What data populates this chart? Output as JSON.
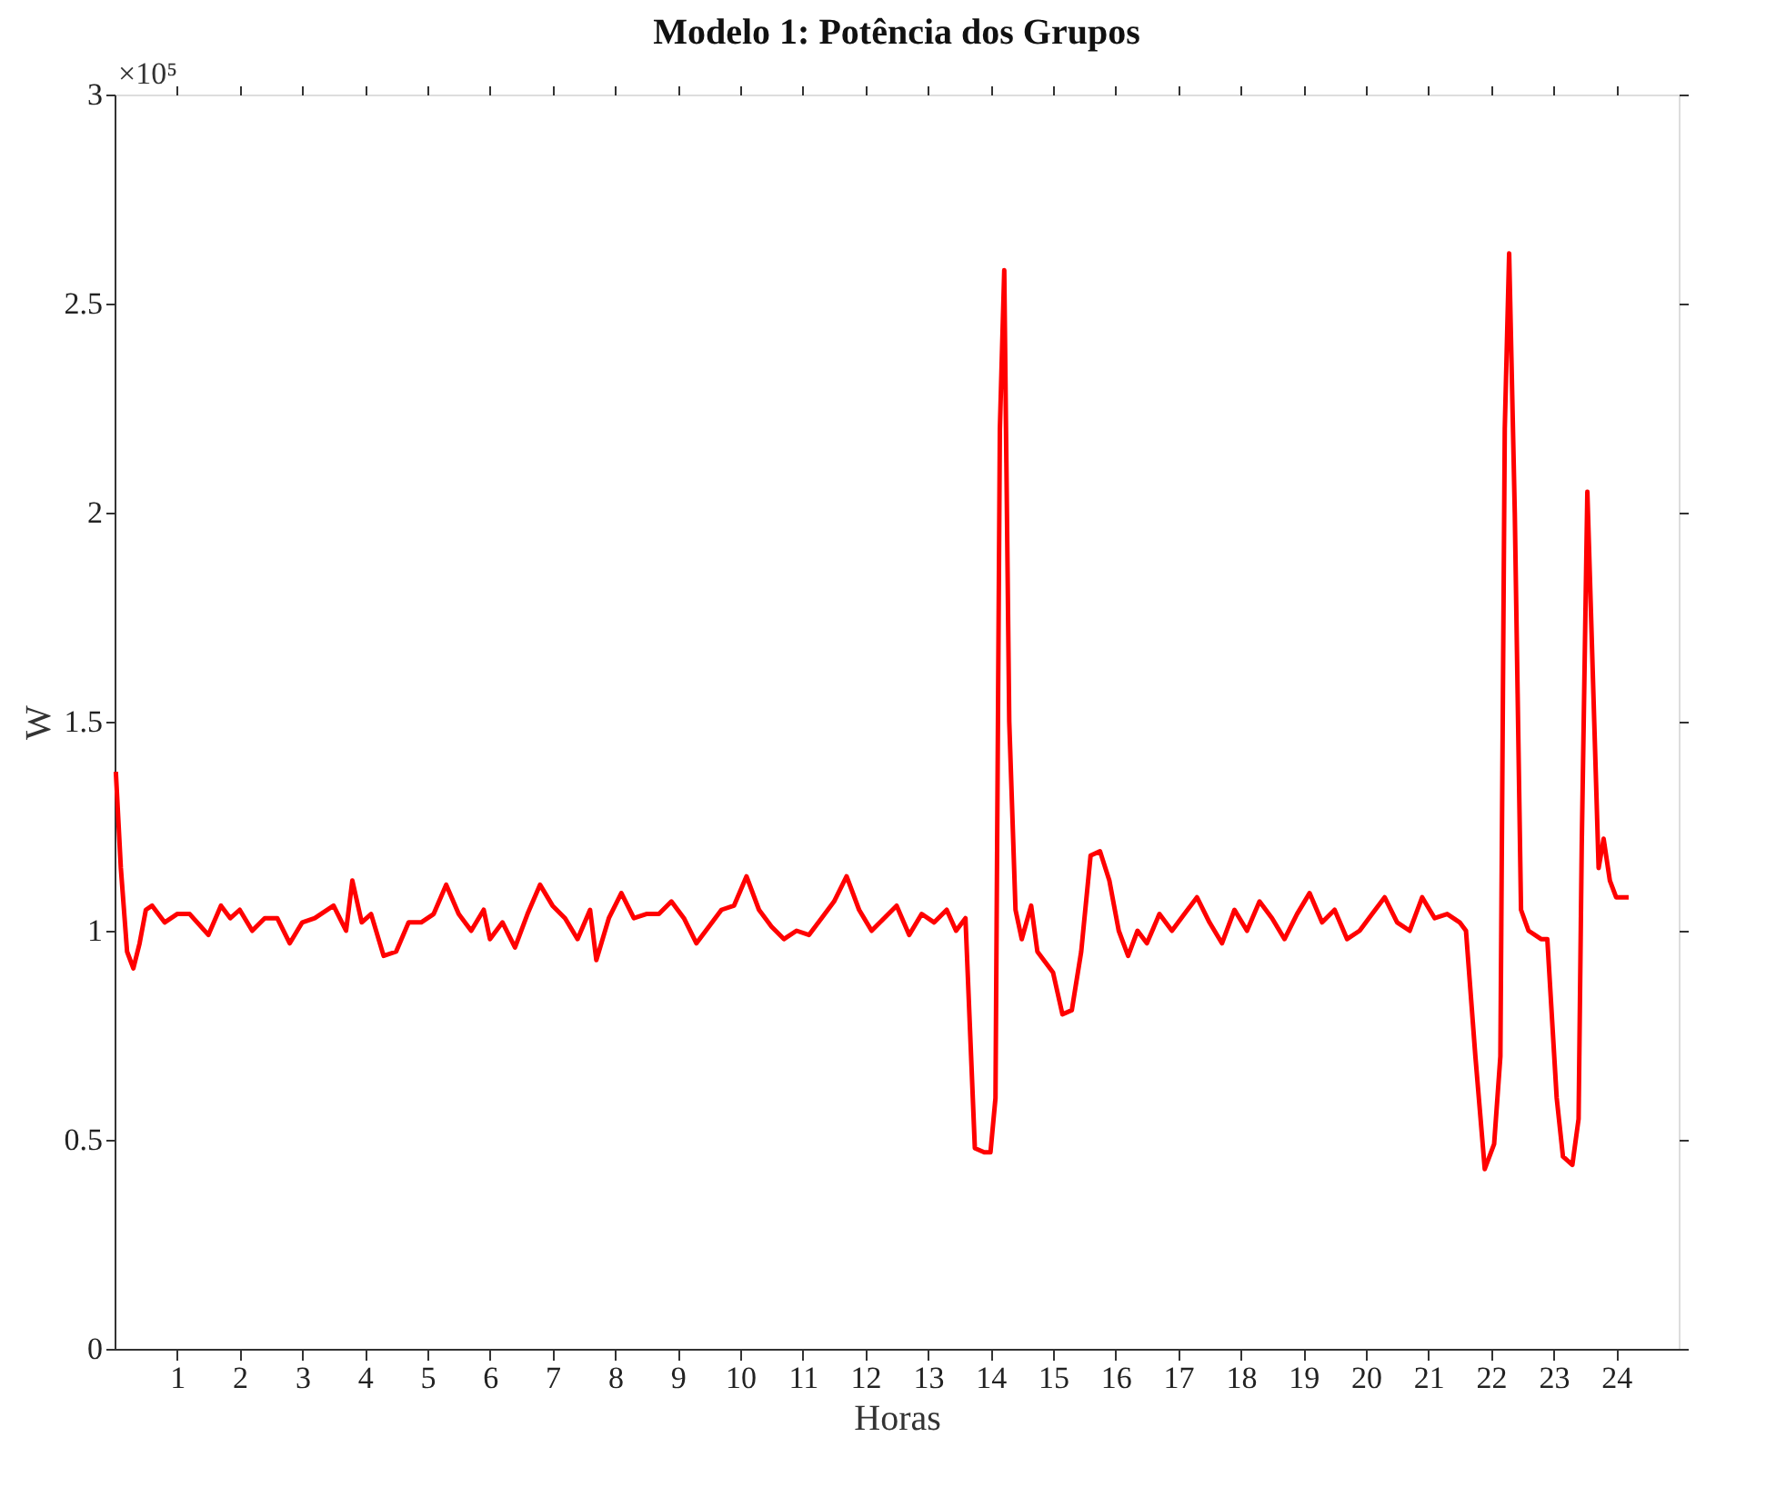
{
  "chart_data": {
    "type": "line",
    "title": "Modelo 1: Potência dos Grupos",
    "xlabel": "Horas",
    "ylabel": "W",
    "annotations": [
      "×10⁵"
    ],
    "xlim": [
      0,
      25
    ],
    "xticks": [
      1,
      2,
      3,
      4,
      5,
      6,
      7,
      8,
      9,
      10,
      11,
      12,
      13,
      14,
      15,
      16,
      17,
      18,
      19,
      20,
      21,
      22,
      23,
      24
    ],
    "ylim": [
      0,
      3
    ],
    "yticks": [
      0,
      0.5,
      1,
      1.5,
      2,
      2.5,
      3
    ],
    "grid": false,
    "marker": "none",
    "line_style": "solid",
    "series": [
      {
        "color": "#ff0000",
        "x": [
          0.02,
          0.1,
          0.2,
          0.3,
          0.4,
          0.5,
          0.6,
          0.8,
          1.0,
          1.2,
          1.5,
          1.7,
          1.85,
          2.0,
          2.2,
          2.4,
          2.6,
          2.8,
          3.0,
          3.2,
          3.5,
          3.7,
          3.8,
          3.95,
          4.1,
          4.3,
          4.5,
          4.7,
          4.9,
          5.1,
          5.3,
          5.5,
          5.7,
          5.9,
          6.0,
          6.2,
          6.4,
          6.6,
          6.8,
          7.0,
          7.2,
          7.4,
          7.6,
          7.7,
          7.9,
          8.1,
          8.3,
          8.5,
          8.7,
          8.9,
          9.1,
          9.3,
          9.45,
          9.7,
          9.9,
          10.1,
          10.3,
          10.5,
          10.7,
          10.9,
          11.1,
          11.3,
          11.5,
          11.7,
          11.9,
          12.1,
          12.3,
          12.5,
          12.7,
          12.9,
          13.1,
          13.3,
          13.45,
          13.6,
          13.75,
          13.9,
          14.0,
          14.08,
          14.15,
          14.22,
          14.3,
          14.4,
          14.5,
          14.65,
          14.75,
          14.9,
          15.0,
          15.15,
          15.3,
          15.45,
          15.6,
          15.75,
          15.9,
          16.05,
          16.2,
          16.35,
          16.5,
          16.7,
          16.9,
          17.1,
          17.3,
          17.5,
          17.7,
          17.9,
          18.1,
          18.3,
          18.5,
          18.7,
          18.9,
          19.1,
          19.3,
          19.5,
          19.7,
          19.9,
          20.1,
          20.3,
          20.5,
          20.7,
          20.9,
          21.1,
          21.3,
          21.5,
          21.6,
          21.75,
          21.9,
          22.05,
          22.15,
          22.22,
          22.29,
          22.38,
          22.48,
          22.6,
          22.8,
          22.9,
          23.05,
          23.15,
          23.3,
          23.4,
          23.45,
          23.54,
          23.65,
          23.72,
          23.8,
          23.9,
          24.0,
          24.2
        ],
        "values": [
          1.38,
          1.15,
          0.95,
          0.91,
          0.97,
          1.05,
          1.06,
          1.02,
          1.04,
          1.04,
          0.99,
          1.06,
          1.03,
          1.05,
          1.0,
          1.03,
          1.03,
          0.97,
          1.02,
          1.03,
          1.06,
          1.0,
          1.12,
          1.02,
          1.04,
          0.94,
          0.95,
          1.02,
          1.02,
          1.04,
          1.11,
          1.04,
          1.0,
          1.05,
          0.98,
          1.02,
          0.96,
          1.04,
          1.11,
          1.06,
          1.03,
          0.98,
          1.05,
          0.93,
          1.03,
          1.09,
          1.03,
          1.04,
          1.04,
          1.07,
          1.03,
          0.97,
          1.0,
          1.05,
          1.06,
          1.13,
          1.05,
          1.01,
          0.98,
          1.0,
          0.99,
          1.03,
          1.07,
          1.13,
          1.05,
          1.0,
          1.03,
          1.06,
          0.99,
          1.04,
          1.02,
          1.05,
          1.0,
          1.03,
          0.48,
          0.47,
          0.47,
          0.6,
          2.2,
          2.58,
          1.5,
          1.05,
          0.98,
          1.06,
          0.95,
          0.92,
          0.9,
          0.8,
          0.81,
          0.95,
          1.18,
          1.19,
          1.12,
          1.0,
          0.94,
          1.0,
          0.97,
          1.04,
          1.0,
          1.04,
          1.08,
          1.02,
          0.97,
          1.05,
          1.0,
          1.07,
          1.03,
          0.98,
          1.04,
          1.09,
          1.02,
          1.05,
          0.98,
          1.0,
          1.04,
          1.08,
          1.02,
          1.0,
          1.08,
          1.03,
          1.04,
          1.02,
          1.0,
          0.7,
          0.43,
          0.49,
          0.7,
          2.2,
          2.62,
          2.0,
          1.05,
          1.0,
          0.98,
          0.98,
          0.6,
          0.46,
          0.44,
          0.55,
          1.2,
          2.05,
          1.5,
          1.15,
          1.22,
          1.12,
          1.08,
          1.08
        ]
      }
    ]
  }
}
